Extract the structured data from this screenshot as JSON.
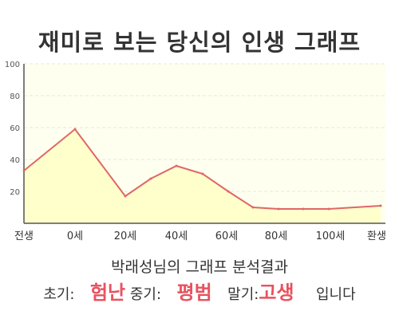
{
  "page": {
    "title": "재미로 보는 당신의 인생 그래프",
    "analysis_title": "박래성님의 그래프 분석결과",
    "result": {
      "early_label": "초기:",
      "early_value": "험난",
      "middle_label": "중기:",
      "middle_value": "평범",
      "late_label": "말기:",
      "late_value": "고생",
      "suffix": "입니다"
    }
  },
  "colors": {
    "line": "#e06666",
    "area": "#ffffcc",
    "highlight": "#e8525f",
    "grid": "#e4e4e4"
  },
  "chart_data": {
    "type": "area",
    "title": "재미로 보는 당신의 인생 그래프",
    "x_tick_labels": [
      "전생",
      "0세",
      "20세",
      "40세",
      "60세",
      "80세",
      "100세",
      "환생"
    ],
    "x": [
      "전생",
      "0세",
      "20세",
      "30세",
      "40세",
      "50세",
      "60세",
      "70세",
      "80세",
      "90세",
      "100세",
      "환생"
    ],
    "values": [
      33,
      59,
      17,
      28,
      36,
      31,
      20,
      10,
      9,
      9,
      9,
      11
    ],
    "ylim": [
      0,
      100
    ],
    "y_ticks": [
      20,
      40,
      60,
      80,
      100
    ],
    "grid": true,
    "legend": "none"
  }
}
